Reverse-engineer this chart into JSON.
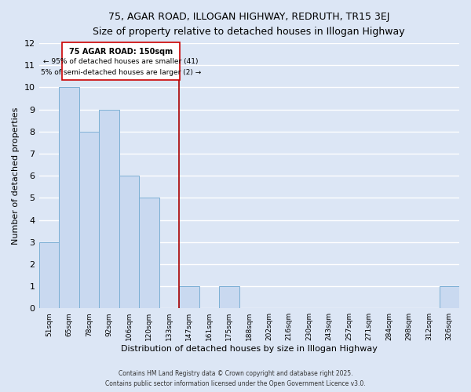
{
  "title": "75, AGAR ROAD, ILLOGAN HIGHWAY, REDRUTH, TR15 3EJ",
  "subtitle": "Size of property relative to detached houses in Illogan Highway",
  "xlabel": "Distribution of detached houses by size in Illogan Highway",
  "ylabel": "Number of detached properties",
  "bar_labels": [
    "51sqm",
    "65sqm",
    "78sqm",
    "92sqm",
    "106sqm",
    "120sqm",
    "133sqm",
    "147sqm",
    "161sqm",
    "175sqm",
    "188sqm",
    "202sqm",
    "216sqm",
    "230sqm",
    "243sqm",
    "257sqm",
    "271sqm",
    "284sqm",
    "298sqm",
    "312sqm",
    "326sqm"
  ],
  "bar_values": [
    3,
    10,
    8,
    9,
    6,
    5,
    0,
    1,
    0,
    1,
    0,
    0,
    0,
    0,
    0,
    0,
    0,
    0,
    0,
    0,
    1
  ],
  "bar_color": "#c9d9f0",
  "bar_edge_color": "#7bafd4",
  "background_color": "#dce6f5",
  "grid_color": "#ffffff",
  "vline_index": 7,
  "vline_color": "#aa0000",
  "ylim_max": 12,
  "yticks": [
    0,
    1,
    2,
    3,
    4,
    5,
    6,
    7,
    8,
    9,
    10,
    11,
    12
  ],
  "annotation_title": "75 AGAR ROAD: 150sqm",
  "annotation_line1": "← 95% of detached houses are smaller (41)",
  "annotation_line2": "5% of semi-detached houses are larger (2) →",
  "annotation_box_color": "#ffffff",
  "annotation_box_edge": "#cc0000",
  "footer1": "Contains HM Land Registry data © Crown copyright and database right 2025.",
  "footer2": "Contains public sector information licensed under the Open Government Licence v3.0."
}
